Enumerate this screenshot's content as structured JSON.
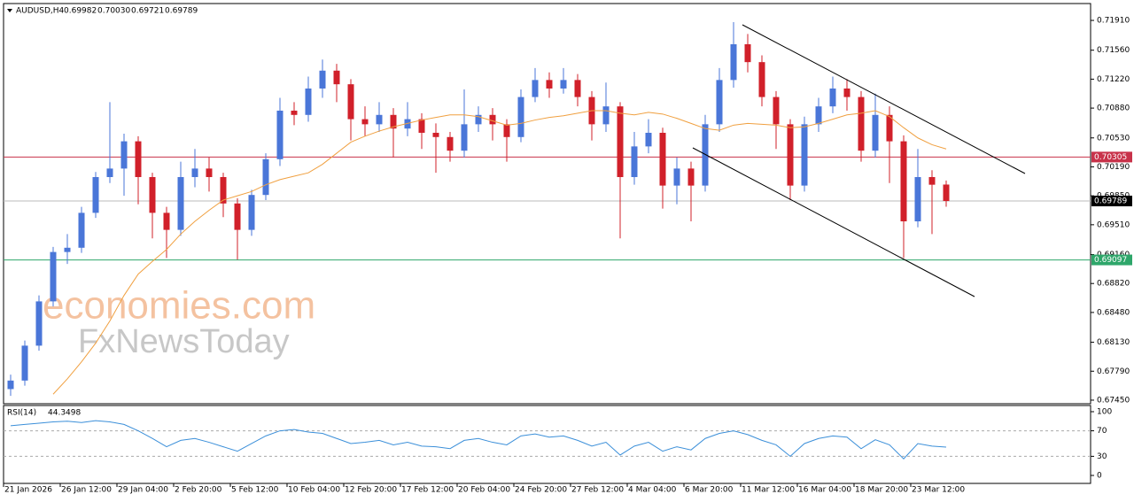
{
  "chart_data": {
    "type": "candlestick",
    "symbol": "AUDUSD,H4",
    "header_values": [
      "0.69982",
      "0.70030",
      "0.69721",
      "0.69789"
    ],
    "colors": {
      "up": "#4a76d8",
      "down": "#d1202a",
      "ma": "#f0a040",
      "rsi": "#3b8fd9"
    },
    "ylim": [
      0.67408,
      0.72108
    ],
    "yticks": [
      {
        "value": 0.7191,
        "label": "0.71910"
      },
      {
        "value": 0.7156,
        "label": "0.71560"
      },
      {
        "value": 0.7122,
        "label": "0.71220"
      },
      {
        "value": 0.7088,
        "label": "0.70880"
      },
      {
        "value": 0.7053,
        "label": "0.70530"
      },
      {
        "value": 0.7019,
        "label": "0.70190"
      },
      {
        "value": 0.6985,
        "label": "0.69850"
      },
      {
        "value": 0.6951,
        "label": "0.69510"
      },
      {
        "value": 0.6916,
        "label": "0.69160"
      },
      {
        "value": 0.6882,
        "label": "0.68820"
      },
      {
        "value": 0.6848,
        "label": "0.68480"
      },
      {
        "value": 0.6813,
        "label": "0.68130"
      },
      {
        "value": 0.6779,
        "label": "0.67790"
      },
      {
        "value": 0.6745,
        "label": "0.67450"
      }
    ],
    "levels": [
      {
        "value": 0.70305,
        "color": "#c8324a"
      },
      {
        "value": 0.69789,
        "color": "#000000"
      },
      {
        "value": 0.69097,
        "color": "#2ea66a"
      }
    ],
    "xlabels": [
      "21 Jan 2026",
      "26 Jan 12:00",
      "29 Jan 04:00",
      "2 Feb 20:00",
      "5 Feb 12:00",
      "10 Feb 04:00",
      "12 Feb 20:00",
      "17 Feb 12:00",
      "20 Feb 04:00",
      "24 Feb 20:00",
      "27 Feb 12:00",
      "4 Mar 04:00",
      "6 Mar 20:00",
      "11 Mar 12:00",
      "16 Mar 04:00",
      "18 Mar 20:00",
      "23 Mar 12:00"
    ],
    "candles": [
      [
        0.6758,
        0.6775,
        0.675,
        0.6768
      ],
      [
        0.6768,
        0.6815,
        0.6762,
        0.6809
      ],
      [
        0.6809,
        0.6868,
        0.6803,
        0.6861
      ],
      [
        0.6861,
        0.6925,
        0.6855,
        0.6919
      ],
      [
        0.6919,
        0.694,
        0.6905,
        0.6924
      ],
      [
        0.6924,
        0.6972,
        0.6918,
        0.6965
      ],
      [
        0.6965,
        0.7013,
        0.6959,
        0.7007
      ],
      [
        0.7007,
        0.7095,
        0.7,
        0.7017
      ],
      [
        0.7017,
        0.7058,
        0.6985,
        0.7049
      ],
      [
        0.7049,
        0.7055,
        0.6975,
        0.7007
      ],
      [
        0.7007,
        0.7012,
        0.6935,
        0.6965
      ],
      [
        0.6965,
        0.6972,
        0.6912,
        0.6945
      ],
      [
        0.6945,
        0.7025,
        0.6938,
        0.7007
      ],
      [
        0.7007,
        0.704,
        0.6995,
        0.7017
      ],
      [
        0.7017,
        0.703,
        0.699,
        0.7007
      ],
      [
        0.7007,
        0.7012,
        0.696,
        0.6976
      ],
      [
        0.6976,
        0.6982,
        0.691,
        0.6945
      ],
      [
        0.6945,
        0.6992,
        0.6938,
        0.6986
      ],
      [
        0.6986,
        0.7035,
        0.698,
        0.7028
      ],
      [
        0.7028,
        0.71,
        0.702,
        0.7085
      ],
      [
        0.7085,
        0.7095,
        0.7068,
        0.708
      ],
      [
        0.708,
        0.7125,
        0.7072,
        0.7111
      ],
      [
        0.7111,
        0.7145,
        0.71,
        0.7132
      ],
      [
        0.7132,
        0.714,
        0.7095,
        0.7116
      ],
      [
        0.7116,
        0.7122,
        0.705,
        0.7075
      ],
      [
        0.7075,
        0.709,
        0.7055,
        0.7069
      ],
      [
        0.7069,
        0.7095,
        0.706,
        0.708
      ],
      [
        0.708,
        0.7088,
        0.703,
        0.7064
      ],
      [
        0.7064,
        0.7095,
        0.7055,
        0.7075
      ],
      [
        0.7075,
        0.7082,
        0.704,
        0.7059
      ],
      [
        0.7059,
        0.707,
        0.7012,
        0.7054
      ],
      [
        0.7054,
        0.706,
        0.7025,
        0.7038
      ],
      [
        0.7038,
        0.711,
        0.703,
        0.7069
      ],
      [
        0.7069,
        0.709,
        0.706,
        0.708
      ],
      [
        0.708,
        0.7088,
        0.705,
        0.7069
      ],
      [
        0.7069,
        0.7075,
        0.7025,
        0.7054
      ],
      [
        0.7054,
        0.711,
        0.7048,
        0.7101
      ],
      [
        0.7101,
        0.7135,
        0.7095,
        0.7121
      ],
      [
        0.7121,
        0.713,
        0.71,
        0.7111
      ],
      [
        0.7111,
        0.7135,
        0.7105,
        0.7121
      ],
      [
        0.7121,
        0.7128,
        0.709,
        0.7101
      ],
      [
        0.7101,
        0.7108,
        0.705,
        0.7069
      ],
      [
        0.7069,
        0.7118,
        0.706,
        0.709
      ],
      [
        0.709,
        0.7095,
        0.6935,
        0.7007
      ],
      [
        0.7007,
        0.706,
        0.6998,
        0.7043
      ],
      [
        0.7043,
        0.7075,
        0.7035,
        0.7059
      ],
      [
        0.7059,
        0.7065,
        0.697,
        0.6997
      ],
      [
        0.6997,
        0.703,
        0.6975,
        0.7017
      ],
      [
        0.7017,
        0.7025,
        0.6955,
        0.6997
      ],
      [
        0.6997,
        0.708,
        0.699,
        0.7069
      ],
      [
        0.7069,
        0.7135,
        0.706,
        0.7121
      ],
      [
        0.7121,
        0.7189,
        0.7112,
        0.7163
      ],
      [
        0.7163,
        0.7175,
        0.713,
        0.7142
      ],
      [
        0.7142,
        0.715,
        0.709,
        0.7101
      ],
      [
        0.7101,
        0.7108,
        0.704,
        0.7069
      ],
      [
        0.7069,
        0.7075,
        0.698,
        0.6997
      ],
      [
        0.6997,
        0.7078,
        0.699,
        0.7069
      ],
      [
        0.7069,
        0.71,
        0.706,
        0.709
      ],
      [
        0.709,
        0.7125,
        0.7082,
        0.7111
      ],
      [
        0.7111,
        0.7122,
        0.7085,
        0.7101
      ],
      [
        0.7101,
        0.7108,
        0.7025,
        0.7038
      ],
      [
        0.7038,
        0.7105,
        0.703,
        0.708
      ],
      [
        0.708,
        0.709,
        0.7,
        0.7049
      ],
      [
        0.7049,
        0.7056,
        0.6912,
        0.6955
      ],
      [
        0.6955,
        0.704,
        0.6948,
        0.7007
      ],
      [
        0.7007,
        0.7015,
        0.694,
        0.6998
      ],
      [
        0.69982,
        0.7003,
        0.69721,
        0.69789
      ]
    ],
    "ma": [
      null,
      null,
      null,
      0.6752,
      0.677,
      0.679,
      0.6812,
      0.6838,
      0.6868,
      0.6893,
      0.6908,
      0.6922,
      0.694,
      0.6955,
      0.6968,
      0.698,
      0.6985,
      0.699,
      0.6998,
      0.7004,
      0.7008,
      0.7012,
      0.7022,
      0.7035,
      0.7048,
      0.7055,
      0.7061,
      0.7066,
      0.707,
      0.7074,
      0.7077,
      0.708,
      0.708,
      0.7078,
      0.7073,
      0.7068,
      0.707,
      0.7074,
      0.7077,
      0.7079,
      0.7082,
      0.7085,
      0.7085,
      0.7082,
      0.708,
      0.7083,
      0.7081,
      0.7076,
      0.707,
      0.7064,
      0.7062,
      0.7068,
      0.707,
      0.7069,
      0.7068,
      0.7065,
      0.7066,
      0.707,
      0.7075,
      0.708,
      0.7082,
      0.7085,
      0.7078,
      0.7065,
      0.7053,
      0.7045,
      0.704
    ],
    "rsi": {
      "label": "RSI(14)",
      "ylim": [
        -12.5,
        109.7
      ],
      "yticks": [
        100,
        70,
        30,
        0
      ],
      "dashed": [
        70,
        30
      ],
      "values": [
        78,
        80,
        82,
        84,
        85,
        83,
        86,
        84,
        80,
        70,
        58,
        45,
        55,
        58,
        52,
        45,
        38,
        50,
        62,
        70,
        72,
        68,
        66,
        58,
        50,
        52,
        55,
        48,
        52,
        46,
        45,
        42,
        55,
        58,
        52,
        48,
        62,
        65,
        60,
        62,
        55,
        46,
        52,
        32,
        46,
        52,
        38,
        45,
        40,
        58,
        66,
        70,
        64,
        55,
        48,
        30,
        50,
        58,
        62,
        60,
        42,
        56,
        48,
        26,
        50,
        46,
        44.3498
      ]
    },
    "watermark": [
      "economies.com",
      "FxNewsToday"
    ]
  }
}
